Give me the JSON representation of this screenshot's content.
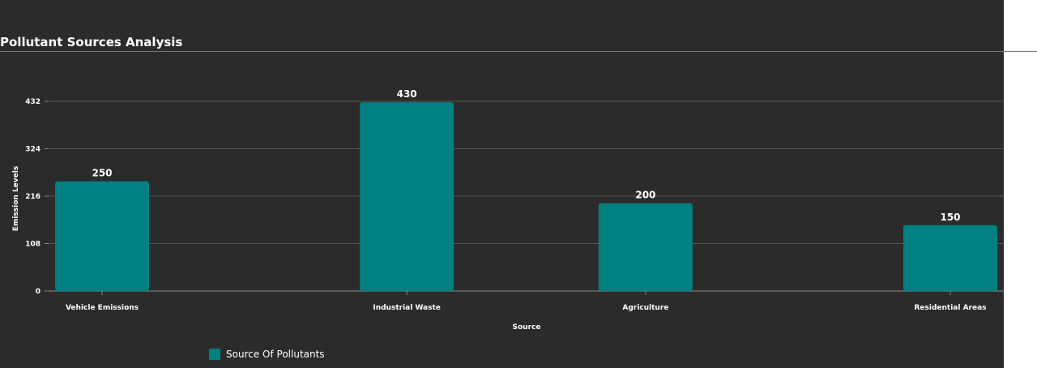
{
  "chart_data": {
    "type": "bar",
    "title": "Pollutant Sources Analysis",
    "xlabel": "Source",
    "ylabel": "Emission Levels",
    "categories": [
      "Vehicle Emissions",
      "Industrial Waste",
      "Agriculture",
      "Residential Areas"
    ],
    "series": [
      {
        "name": "Source Of Pollutants",
        "values": [
          250,
          430,
          200,
          150
        ],
        "color": "#008080"
      }
    ],
    "yticks": [
      0,
      108,
      216,
      324,
      432
    ],
    "ylim": [
      0,
      432
    ],
    "grid": true,
    "legend_position": "bottom-left",
    "background": "#2b2b2b"
  }
}
